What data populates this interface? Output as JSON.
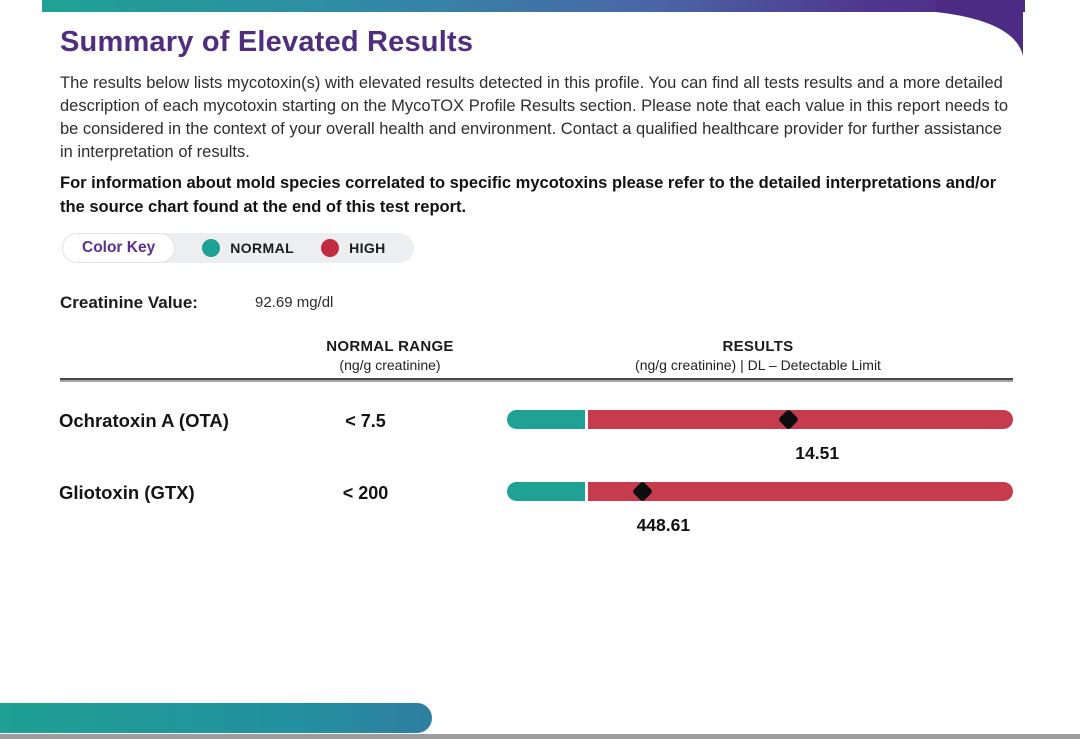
{
  "page": {
    "title": "Summary of Elevated Results",
    "intro": "The results below lists mycotoxin(s) with elevated results detected in this profile. You can find all tests results and a more detailed description of each mycotoxin starting on the MycoTOX Profile Results section. Please note that each value in this report needs to be considered in the context of your overall health and environment. Contact a qualified healthcare provider for further assistance in interpretation of results.",
    "note": "For information about mold species correlated to specific mycotoxins please refer to the detailed interpretations and/or the source chart found at the end of this test report."
  },
  "color_key": {
    "label": "Color Key",
    "items": [
      {
        "label": "NORMAL",
        "color": "#1FA294"
      },
      {
        "label": "HIGH",
        "color": "#C22B40"
      }
    ]
  },
  "creatinine": {
    "label": "Creatinine Value:",
    "value": "92.69 mg/dl"
  },
  "table": {
    "normal_range_header": "NORMAL RANGE",
    "normal_range_sub": "(ng/g creatinine)",
    "results_header": "RESULTS",
    "results_sub": "(ng/g creatinine) | DL – Detectable Limit"
  },
  "rows": [
    {
      "name": "Ochratoxin A (OTA)",
      "normal_range": "< 7.5",
      "result": "14.51",
      "status": "HIGH",
      "marker_pct": 55.8,
      "label_pct": 61.3,
      "normal_segment_pct": 15.5
    },
    {
      "name": "Gliotoxin (GTX)",
      "normal_range": "< 200",
      "result": "448.61",
      "status": "HIGH",
      "marker_pct": 26.9,
      "label_pct": 30.9,
      "normal_segment_pct": 15.5
    }
  ],
  "colors": {
    "accent_teal": "#1FA294",
    "accent_red": "#C73B4F",
    "title_purple": "#512D7E",
    "header_gradient_start": "#1FA294",
    "header_gradient_end": "#4C2B85",
    "bottom_line_gray": "#9D9D9D"
  }
}
